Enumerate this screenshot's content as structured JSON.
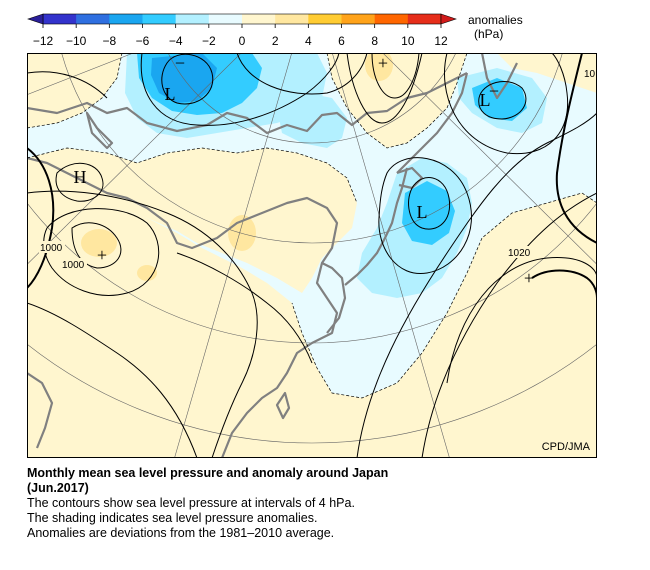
{
  "legend": {
    "title": "anomalies",
    "unit": "(hPa)",
    "ticks": [
      "−12",
      "−10",
      "−8",
      "−6",
      "−4",
      "−2",
      "0",
      "2",
      "4",
      "6",
      "8",
      "10",
      "12"
    ],
    "bins": [
      {
        "from": -12,
        "to": -10,
        "color": "#3333cc"
      },
      {
        "from": -10,
        "to": -8,
        "color": "#2f6fe0"
      },
      {
        "from": -8,
        "to": -6,
        "color": "#1aa6f0"
      },
      {
        "from": -6,
        "to": -4,
        "color": "#33ccff"
      },
      {
        "from": -4,
        "to": -2,
        "color": "#b3f0ff"
      },
      {
        "from": -2,
        "to": 0,
        "color": "#e8fbff"
      },
      {
        "from": 0,
        "to": 2,
        "color": "#fff6cf"
      },
      {
        "from": 2,
        "to": 4,
        "color": "#ffe7a0"
      },
      {
        "from": 4,
        "to": 6,
        "color": "#ffcc33"
      },
      {
        "from": 6,
        "to": 8,
        "color": "#ffa31a"
      },
      {
        "from": 8,
        "to": 10,
        "color": "#ff6600"
      },
      {
        "from": 10,
        "to": 12,
        "color": "#e62e1a"
      }
    ]
  },
  "map": {
    "labels": {
      "low_1": "L",
      "low_2": "L",
      "low_3": "L",
      "high_1": "H",
      "plus_1": "+",
      "plus_2": "+",
      "plus_3": "+",
      "minus_1": "−",
      "minus_2": "−"
    },
    "contour_labels": {
      "c1000_a": "1000",
      "c1000_b": "1000",
      "c1020": "1020",
      "c10": "10"
    },
    "credit": "CPD/JMA",
    "colors": {
      "land_outline": "#808080",
      "negative_light": "#d9f6ff",
      "negative_mid": "#33ccff",
      "negative_strong": "#1aa6f0",
      "positive_light": "#fff6cf",
      "positive_mid": "#ffe7a0"
    }
  },
  "caption": {
    "title": "Monthly mean sea level pressure and anomaly around Japan",
    "subtitle": "(Jun.2017)",
    "line1": "The contours show sea level pressure at intervals of 4 hPa.",
    "line2": "The shading indicates sea level pressure anomalies.",
    "line3": "Anomalies are deviations from the 1981–2010 average."
  }
}
